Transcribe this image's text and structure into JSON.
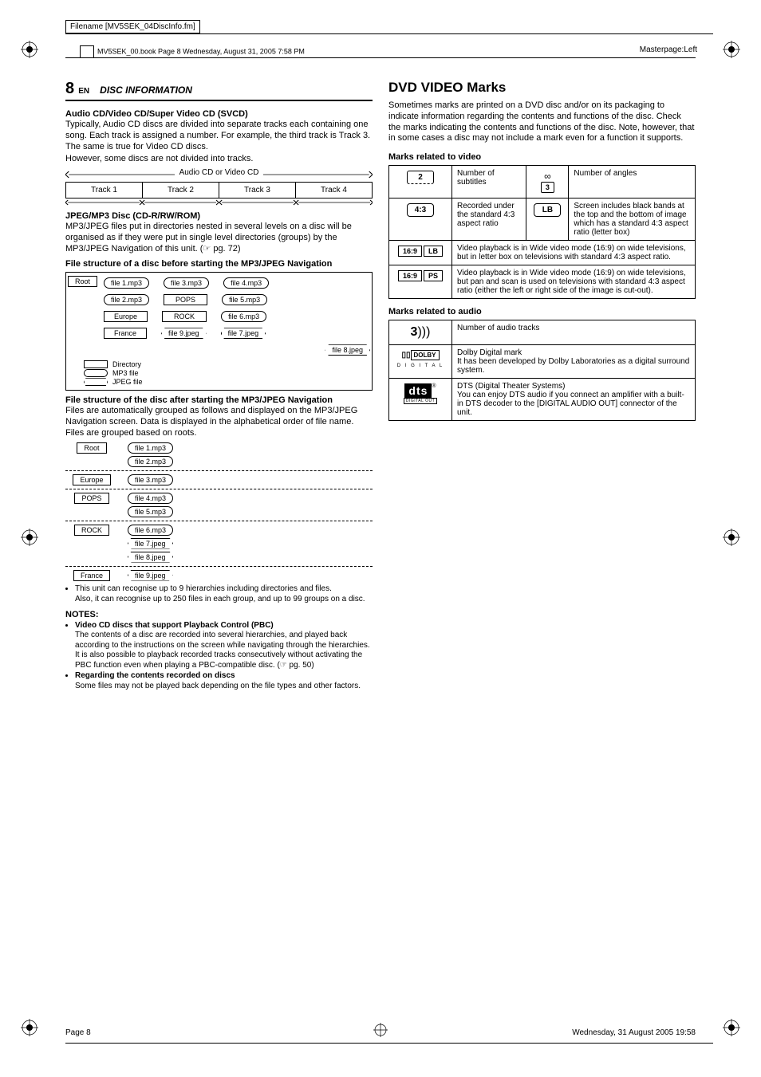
{
  "meta": {
    "filename_label": "Filename [MV5SEK_04DiscInfo.fm]",
    "masterpage": "Masterpage:Left",
    "book_line": "MV5SEK_00.book  Page 8  Wednesday, August 31, 2005  7:58 PM",
    "footer_left": "Page 8",
    "footer_right": "Wednesday, 31 August 2005  19:58"
  },
  "header": {
    "page_num": "8",
    "lang": "EN",
    "section": "DISC INFORMATION"
  },
  "left": {
    "h1": "Audio CD/Video CD/Super Video CD (SVCD)",
    "p1": "Typically, Audio CD discs are divided into separate tracks each containing one song. Each track is assigned a number. For example, the third track is Track 3. The same is true for Video CD discs.",
    "p2": "However, some discs are not divided into tracks.",
    "track_header": "Audio CD or Video CD",
    "tracks": [
      "Track 1",
      "Track 2",
      "Track 3",
      "Track 4"
    ],
    "h2": "JPEG/MP3 Disc (CD-R/RW/ROM)",
    "p3": "MP3/JPEG files put in directories nested in several levels on a disc will be organised as if they were put in single level directories (groups) by the MP3/JPEG Navigation of this unit. (☞ pg. 72)",
    "h3": "File structure of a disc before starting the MP3/JPEG Navigation",
    "tree_before": {
      "root": "Root",
      "row1": [
        "file 1.mp3",
        "file 3.mp3",
        "file 4.mp3"
      ],
      "row2": [
        "file 2.mp3",
        "POPS",
        "file 5.mp3"
      ],
      "row3": [
        "Europe",
        "ROCK",
        "file 6.mp3"
      ],
      "row4": [
        "France",
        "file 9.jpeg",
        "file 7.jpeg"
      ],
      "row5": [
        "file 8.jpeg"
      ],
      "legend": [
        "Directory",
        "MP3 file",
        "JPEG file"
      ]
    },
    "h4": "File structure of the disc after starting the MP3/JPEG Navigation",
    "p4": "Files are automatically grouped as follows and displayed on the MP3/JPEG Navigation screen. Data is displayed in the alphabetical order of file name. Files are grouped based on roots.",
    "tree_after": [
      {
        "dir": "Root",
        "files": [
          "file 1.mp3",
          "file 2.mp3"
        ],
        "types": [
          "mp3",
          "mp3"
        ]
      },
      {
        "dir": "Europe",
        "files": [
          "file 3.mp3"
        ],
        "types": [
          "mp3"
        ]
      },
      {
        "dir": "POPS",
        "files": [
          "file 4.mp3",
          "file 5.mp3"
        ],
        "types": [
          "mp3",
          "mp3"
        ]
      },
      {
        "dir": "ROCK",
        "files": [
          "file 6.mp3",
          "file 7.jpeg",
          "file 8.jpeg"
        ],
        "types": [
          "mp3",
          "jpeg",
          "jpeg"
        ]
      },
      {
        "dir": "France",
        "files": [
          "file 9.jpeg"
        ],
        "types": [
          "jpeg"
        ]
      }
    ],
    "bullets1": [
      "This unit can recognise up to 9 hierarchies including directories and files.",
      "Also, it can recognise up to 250 files in each group, and up to 99 groups on a disc."
    ],
    "notes_label": "NOTES:",
    "note1_h": "Video CD discs that support Playback Control (PBC)",
    "note1_p": "The contents of a disc are recorded into several hierarchies, and played back according to the instructions on the screen while navigating through the hierarchies. It is also possible to playback recorded tracks consecutively without activating the PBC function even when playing a PBC-compatible disc. (☞ pg. 50)",
    "note2_h": "Regarding the contents recorded on discs",
    "note2_p": "Some files may not be played back depending on the file types and other factors."
  },
  "right": {
    "title": "DVD VIDEO Marks",
    "intro": "Sometimes marks are printed on a DVD disc and/or on its packaging to indicate information regarding the contents and functions of the disc. Check the marks indicating the contents and functions of the disc. Note, however, that in some cases a disc may not include a mark even for a function it supports.",
    "video_h": "Marks related to video",
    "video_table": {
      "r1": {
        "icon1": "2",
        "desc1": "Number of subtitles",
        "icon2": "3",
        "desc2": "Number of angles"
      },
      "r2": {
        "icon1": "4:3",
        "desc1": "Recorded under the standard 4:3 aspect ratio",
        "icon2": "LB",
        "desc2": "Screen includes black bands at the top and the bottom of image which has a standard 4:3 aspect ratio (letter box)"
      },
      "r3": {
        "icon": "16:9",
        "sub": "LB",
        "desc": "Video playback is in Wide video mode (16:9) on wide televisions, but in letter box on televisions with standard 4:3 aspect ratio."
      },
      "r4": {
        "icon": "16:9",
        "sub": "PS",
        "desc": "Video playback is in Wide video mode (16:9) on wide televisions, but pan and scan is used on televisions with standard 4:3 aspect ratio (either the left or right side of the image is cut-out)."
      }
    },
    "audio_h": "Marks related to audio",
    "audio_table": {
      "r1": {
        "icon": "3",
        "desc": "Number of audio tracks"
      },
      "r2": {
        "icon": "DOLBY",
        "sub": "D I G I T A L",
        "desc": "Dolby Digital mark\nIt has been developed by Dolby Laboratories as a digital surround system."
      },
      "r3": {
        "icon": "dts",
        "sub": "DIGITAL OUT",
        "desc": "DTS (Digital Theater Systems)\nYou can enjoy DTS audio if you connect an amplifier with a built-in DTS decoder to the [DIGITAL AUDIO OUT] connector of the unit."
      }
    }
  }
}
